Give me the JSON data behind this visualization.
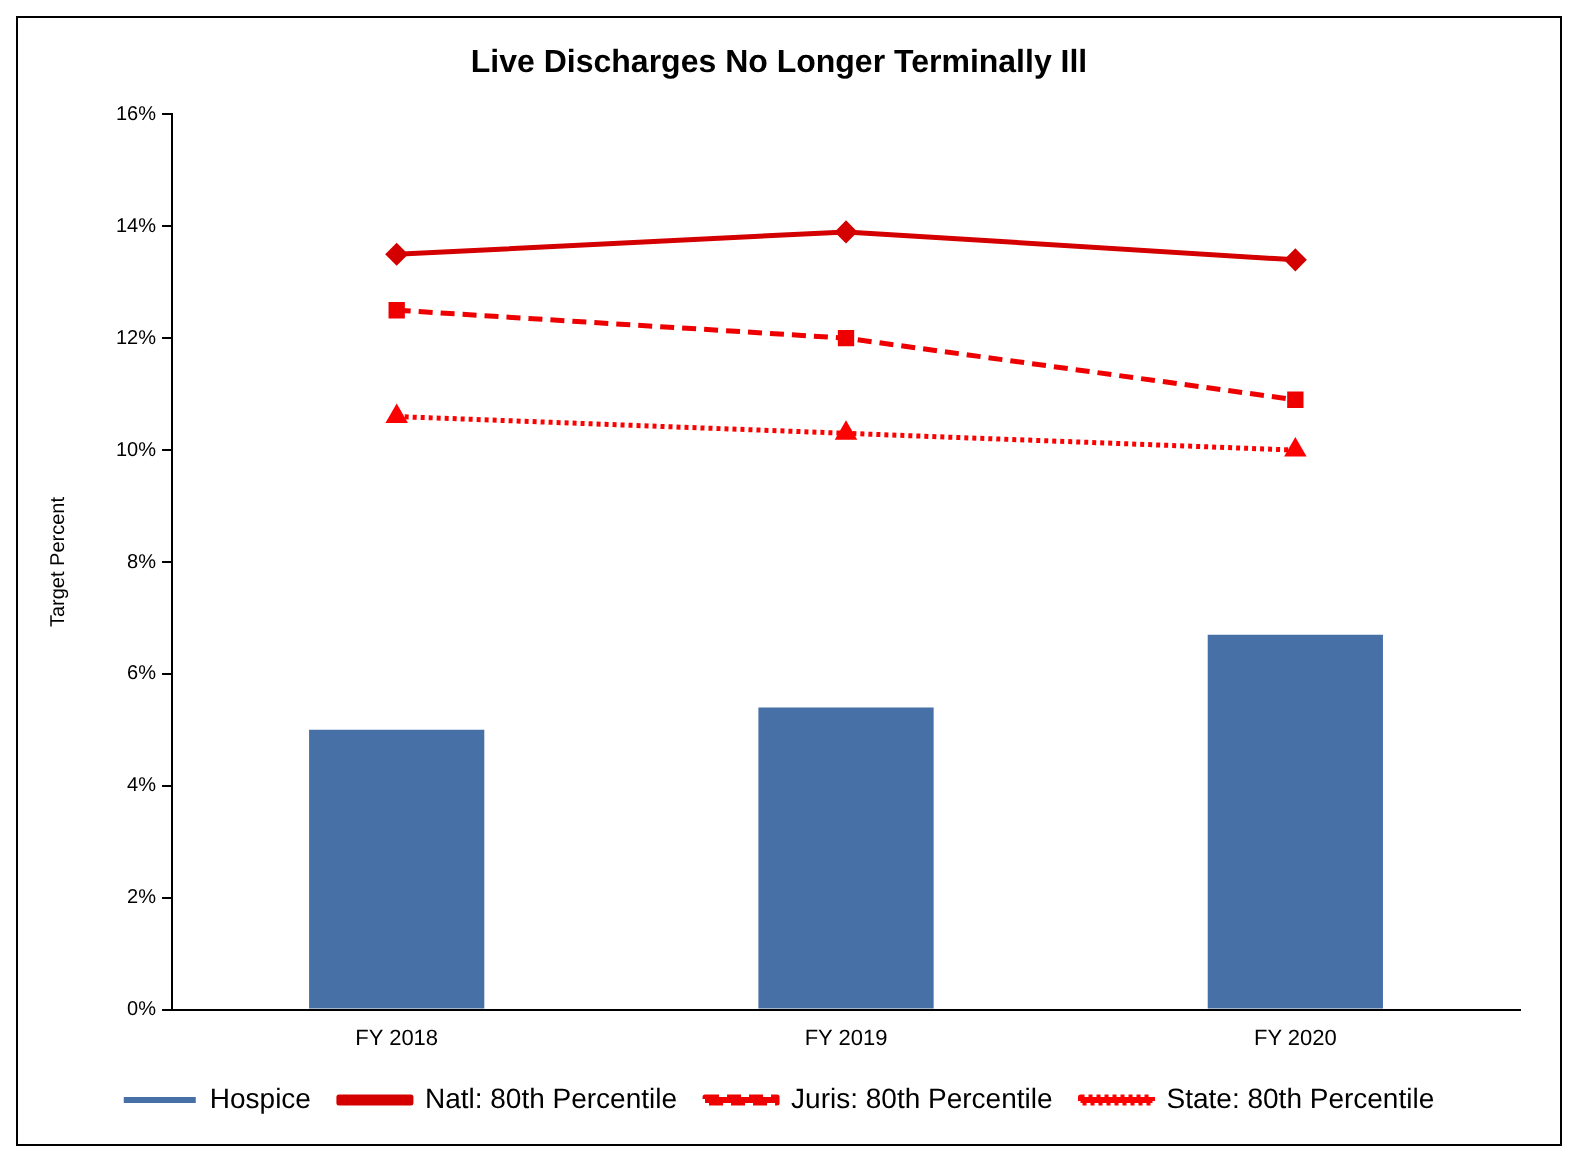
{
  "chart_data": {
    "type": "bar",
    "title": "Live Discharges No Longer Terminally Ill",
    "ylabel": "Target Percent",
    "categories": [
      "FY 2018",
      "FY 2019",
      "FY 2020"
    ],
    "series": [
      {
        "name": "Hospice",
        "color": "#4670a6",
        "values": [
          5.0,
          5.4,
          6.7
        ]
      },
      {
        "name": "Natl: 80th Percentile",
        "type": "line",
        "color": "#d40000",
        "marker": "diamond",
        "line_style": "solid",
        "values": [
          13.5,
          13.9,
          13.4
        ]
      },
      {
        "name": "Juris: 80th Percentile",
        "type": "line",
        "color": "#ee0000",
        "marker": "square",
        "line_style": "dashed",
        "values": [
          12.5,
          12.0,
          10.9
        ]
      },
      {
        "name": "State: 80th Percentile",
        "type": "line",
        "color": "#ff0000",
        "marker": "triangle",
        "line_style": "dotted",
        "values": [
          10.6,
          10.3,
          10.0
        ]
      }
    ],
    "ylim": [
      0,
      16
    ],
    "yticks": [
      {
        "value": 0,
        "label": "0%"
      },
      {
        "value": 2,
        "label": "2%"
      },
      {
        "value": 4,
        "label": "4%"
      },
      {
        "value": 6,
        "label": "6%"
      },
      {
        "value": 8,
        "label": "8%"
      },
      {
        "value": 10,
        "label": "10%"
      },
      {
        "value": 12,
        "label": "12%"
      },
      {
        "value": 14,
        "label": "14%"
      },
      {
        "value": 16,
        "label": "16%"
      }
    ],
    "grid": false,
    "legend": "bottom"
  }
}
